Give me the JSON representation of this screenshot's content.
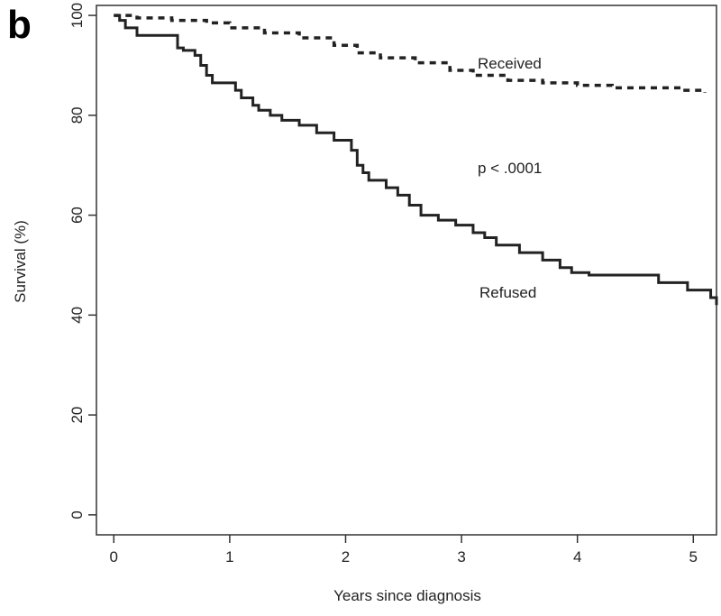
{
  "panel_label": "b",
  "chart_data": {
    "type": "line",
    "title": "",
    "xlabel": "Years since diagnosis",
    "ylabel": "Survival (%)",
    "xlim": [
      -0.15,
      5.2
    ],
    "ylim": [
      -4,
      102
    ],
    "xticks": [
      0,
      1,
      2,
      3,
      4,
      5
    ],
    "yticks": [
      0,
      20,
      40,
      60,
      80,
      100
    ],
    "grid": false,
    "annotation": "p < .0001",
    "series": [
      {
        "name": "Received",
        "style": "dashed",
        "color": "#222222",
        "x": [
          0,
          0.2,
          0.5,
          0.8,
          1.0,
          1.3,
          1.6,
          1.9,
          2.1,
          2.3,
          2.6,
          2.9,
          3.1,
          3.4,
          3.7,
          4.0,
          4.3,
          4.6,
          4.9,
          5.1
        ],
        "y": [
          100,
          99.5,
          99,
          98.5,
          97.5,
          96.5,
          95.5,
          94,
          92.5,
          91.5,
          90.5,
          89,
          88,
          87,
          86.5,
          86,
          85.5,
          85.5,
          85,
          84.5
        ]
      },
      {
        "name": "Refused",
        "style": "solid",
        "color": "#222222",
        "x": [
          0,
          0.05,
          0.1,
          0.2,
          0.55,
          0.6,
          0.7,
          0.75,
          0.8,
          0.85,
          1.05,
          1.1,
          1.2,
          1.25,
          1.35,
          1.45,
          1.6,
          1.75,
          1.9,
          2.05,
          2.1,
          2.15,
          2.2,
          2.35,
          2.45,
          2.55,
          2.65,
          2.8,
          2.95,
          3.1,
          3.2,
          3.3,
          3.5,
          3.7,
          3.85,
          3.95,
          4.1,
          4.7,
          4.95,
          5.15,
          5.2
        ],
        "y": [
          100,
          99,
          97.5,
          96,
          93.5,
          93,
          92,
          90,
          88,
          86.5,
          85,
          83.5,
          82,
          81,
          80,
          79,
          78,
          76.5,
          75,
          73,
          70,
          68.5,
          67,
          65.5,
          64,
          62,
          60,
          59,
          58,
          56.5,
          55.5,
          54,
          52.5,
          51,
          49.5,
          48.5,
          48,
          46.5,
          45,
          43.5,
          42
        ]
      }
    ]
  }
}
